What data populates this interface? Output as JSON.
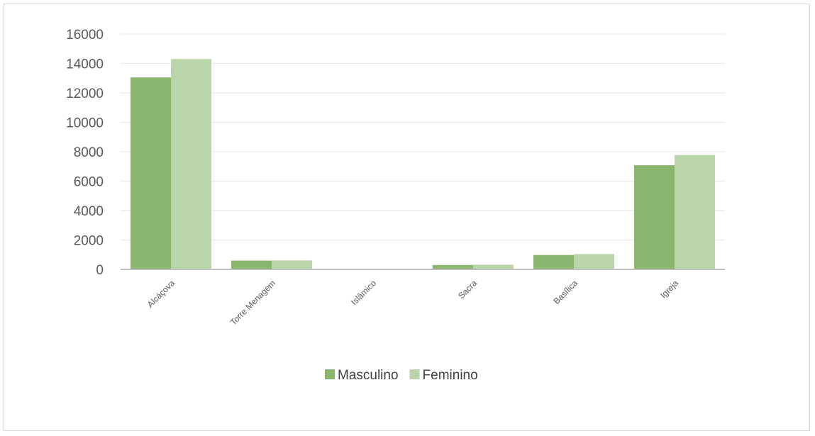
{
  "chart_data": {
    "type": "bar",
    "title": "",
    "xlabel": "",
    "ylabel": "",
    "categories": [
      "Alcáçova",
      "Torre Menagem",
      "Islâmico",
      "Sacra",
      "Basílica",
      "Igreja"
    ],
    "series": [
      {
        "name": "Masculino",
        "values": [
          13050,
          600,
          0,
          300,
          980,
          7080
        ],
        "color": "#8ab56c"
      },
      {
        "name": "Feminino",
        "values": [
          14300,
          610,
          0,
          320,
          1040,
          7780
        ],
        "color": "#bad5a9"
      }
    ],
    "ylim": [
      0,
      16000
    ],
    "yticks": [
      "0",
      "2000",
      "4000",
      "6000",
      "8000",
      "10000",
      "12000",
      "14000",
      "16000"
    ],
    "grid": true,
    "legend_position": "bottom"
  }
}
